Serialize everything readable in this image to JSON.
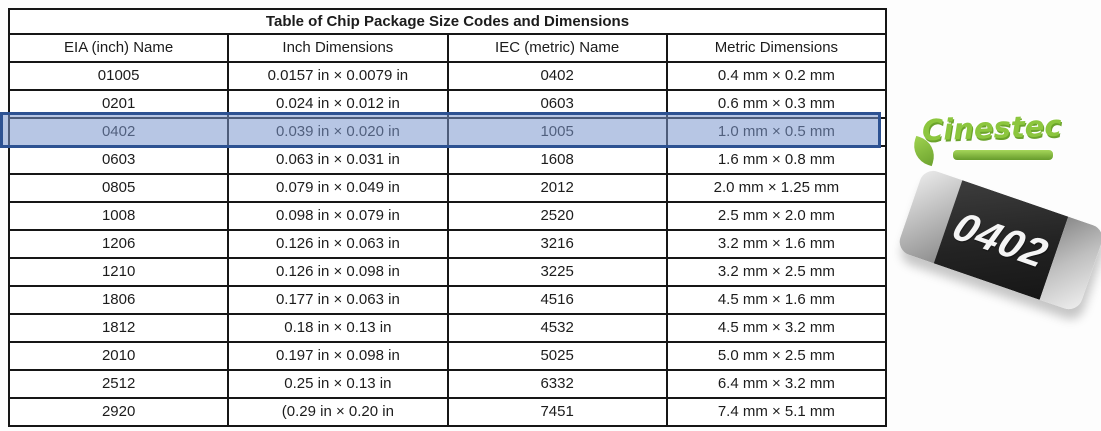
{
  "table": {
    "title": "Table of Chip Package Size Codes and Dimensions",
    "headers": [
      "EIA (inch) Name",
      "Inch Dimensions",
      "IEC (metric) Name",
      "Metric Dimensions"
    ],
    "rows": [
      [
        "01005",
        "0.0157 in × 0.0079 in",
        "0402",
        "0.4 mm × 0.2 mm"
      ],
      [
        "0201",
        "0.024 in × 0.012 in",
        "0603",
        "0.6 mm × 0.3 mm"
      ],
      [
        "0402",
        "0.039 in × 0.020 in",
        "1005",
        "1.0 mm × 0.5 mm"
      ],
      [
        "0603",
        "0.063 in × 0.031 in",
        "1608",
        "1.6 mm × 0.8 mm"
      ],
      [
        "0805",
        "0.079 in × 0.049 in",
        "2012",
        "2.0 mm × 1.25 mm"
      ],
      [
        "1008",
        "0.098 in × 0.079 in",
        "2520",
        "2.5 mm × 2.0 mm"
      ],
      [
        "1206",
        "0.126 in × 0.063 in",
        "3216",
        "3.2 mm × 1.6 mm"
      ],
      [
        "1210",
        "0.126 in × 0.098 in",
        "3225",
        "3.2 mm × 2.5 mm"
      ],
      [
        "1806",
        "0.177 in × 0.063 in",
        "4516",
        "4.5 mm × 1.6 mm"
      ],
      [
        "1812",
        "0.18 in × 0.13 in",
        "4532",
        "4.5 mm × 3.2 mm"
      ],
      [
        "2010",
        "0.197 in × 0.098 in",
        "5025",
        "5.0 mm × 2.5 mm"
      ],
      [
        "2512",
        "0.25 in × 0.13 in",
        "6332",
        "6.4 mm × 3.2 mm"
      ],
      [
        "2920",
        "(0.29 in × 0.20 in",
        "7451",
        "7.4 mm × 5.1 mm"
      ]
    ],
    "highlighted_row_index": 2,
    "highlight_border_color": "#2d5292",
    "highlight_fill_color": "rgba(124,152,206,0.55)"
  },
  "logo": {
    "text": "Cinestec",
    "color": "#8cc63e"
  },
  "chip_image": {
    "label": "0402",
    "body_color": "#232323",
    "cap_color": "#bfbfbf"
  }
}
